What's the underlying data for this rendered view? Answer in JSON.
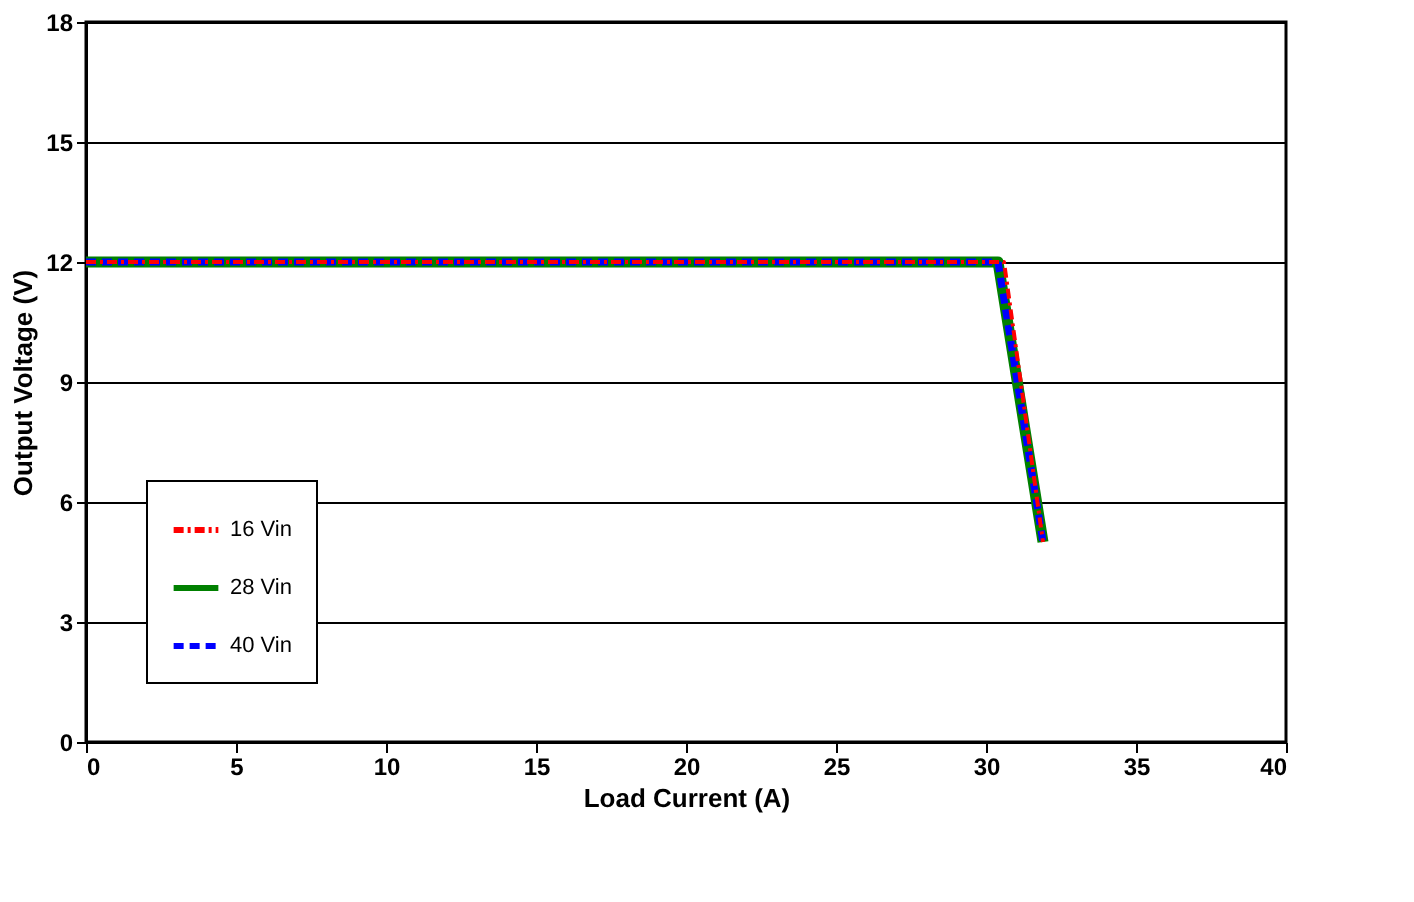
{
  "chart_data": {
    "type": "line",
    "xlabel": "Load Current (A)",
    "ylabel": "Output Voltage (V)",
    "xlim": [
      0,
      40
    ],
    "xticks": [
      0,
      5,
      10,
      15,
      20,
      25,
      30,
      35,
      40
    ],
    "ylim": [
      0,
      18
    ],
    "yticks": [
      0,
      3,
      6,
      9,
      12,
      15,
      18
    ],
    "grid": "y",
    "legend": "bottom left",
    "marker": "none",
    "series": [
      {
        "name": "16 Vin",
        "color": "#ff0000",
        "line_style": "dashdot",
        "x": [
          0,
          10,
          20,
          25,
          30.6,
          31.9
        ],
        "values": [
          12.0,
          12.0,
          12.0,
          12.0,
          12.0,
          5.0
        ]
      },
      {
        "name": "28 Vin",
        "color": "#008000",
        "line_style": "solid",
        "x": [
          0,
          10,
          20,
          25,
          30.4,
          31.9
        ],
        "values": [
          12.0,
          12.0,
          12.0,
          12.0,
          12.0,
          5.0
        ]
      },
      {
        "name": "40 Vin",
        "color": "#0000ff",
        "line_style": "dashed",
        "x": [
          0,
          10,
          20,
          25,
          30.4,
          31.9
        ],
        "values": [
          12.0,
          12.0,
          12.0,
          12.0,
          12.0,
          5.0
        ]
      }
    ]
  }
}
